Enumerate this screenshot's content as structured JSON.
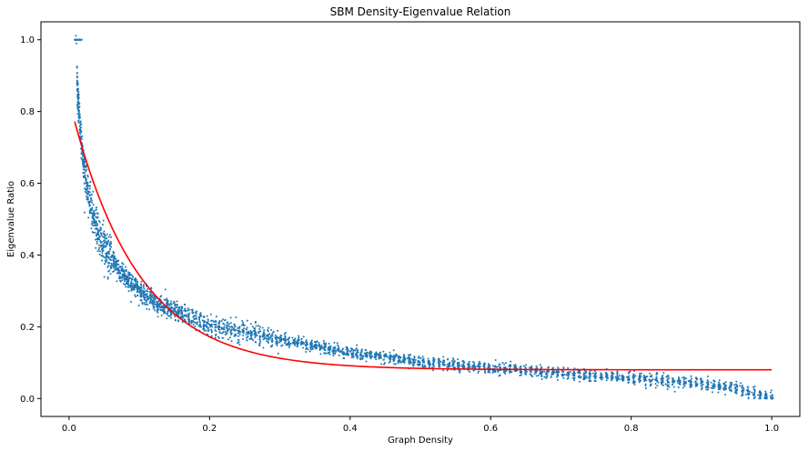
{
  "chart_data": {
    "type": "scatter",
    "title": "SBM Density-Eigenvalue Relation",
    "xlabel": "Graph Density",
    "ylabel": "Eigenvalue Ratio",
    "xlim": [
      -0.04,
      1.04
    ],
    "ylim": [
      -0.05,
      1.05
    ],
    "xticks": [
      "0.0",
      "0.2",
      "0.4",
      "0.6",
      "0.8",
      "1.0"
    ],
    "yticks": [
      "0.0",
      "0.2",
      "0.4",
      "0.6",
      "0.8",
      "1.0"
    ],
    "grid": false,
    "colors": {
      "scatter": "#1f77b4",
      "fit_line": "#ff0000"
    },
    "scatter_series": {
      "density_min": 0.01,
      "density_max": 1.0,
      "trend_points": [
        [
          0.01,
          1.0
        ],
        [
          0.012,
          0.85
        ],
        [
          0.02,
          0.66
        ],
        [
          0.03,
          0.54
        ],
        [
          0.04,
          0.47
        ],
        [
          0.05,
          0.42
        ],
        [
          0.06,
          0.39
        ],
        [
          0.07,
          0.36
        ],
        [
          0.08,
          0.34
        ],
        [
          0.1,
          0.3
        ],
        [
          0.12,
          0.27
        ],
        [
          0.15,
          0.245
        ],
        [
          0.2,
          0.205
        ],
        [
          0.3,
          0.165
        ],
        [
          0.4,
          0.128
        ],
        [
          0.5,
          0.103
        ],
        [
          0.6,
          0.085
        ],
        [
          0.7,
          0.07
        ],
        [
          0.8,
          0.057
        ],
        [
          0.9,
          0.04
        ],
        [
          0.95,
          0.028
        ],
        [
          1.0,
          0.0
        ]
      ],
      "annotation_cluster": {
        "x_range": [
          0.008,
          0.018
        ],
        "y": 1.0
      }
    },
    "fit_line": {
      "function": "a*exp(-b*x)+c",
      "a": 0.753,
      "b": 10.5,
      "c": 0.08,
      "x_range": [
        0.008,
        1.0
      ]
    }
  }
}
